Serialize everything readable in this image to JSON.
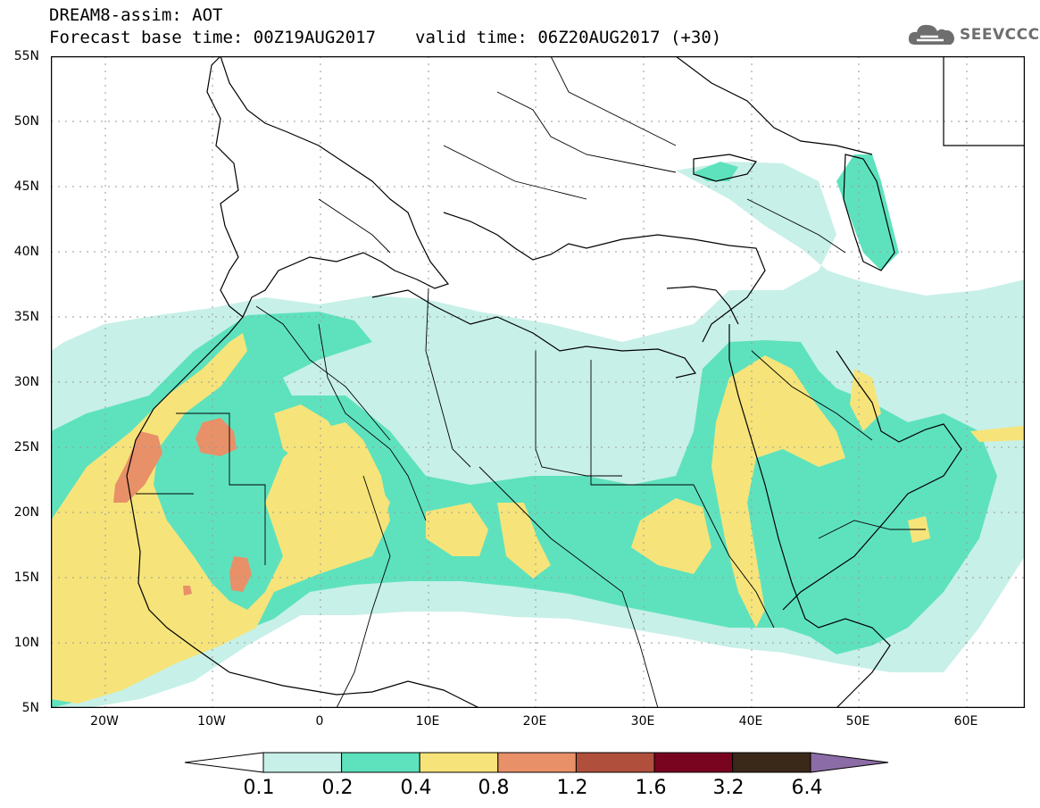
{
  "header": {
    "model_line": "DREAM8-assim: AOT",
    "base_time": "Forecast base time: 00Z19AUG2017",
    "valid_time": "valid time: 06Z20AUG2017 (+30)"
  },
  "logo": {
    "text": "SEEVCCC",
    "icon": "cloud-icon"
  },
  "map": {
    "lon_range": [
      -25,
      65
    ],
    "lat_range": [
      5,
      55
    ],
    "lat_ticks": [
      "55N",
      "50N",
      "45N",
      "40N",
      "35N",
      "30N",
      "25N",
      "20N",
      "15N",
      "10N",
      "5N"
    ],
    "lon_ticks": [
      "20W",
      "10W",
      "0",
      "10E",
      "20E",
      "30E",
      "40E",
      "50E",
      "60E"
    ],
    "grid": "dotted",
    "land_fill": "#ffffff",
    "border_color": "#000000"
  },
  "colorbar": {
    "labels": [
      "0.1",
      "0.2",
      "0.4",
      "0.8",
      "1.2",
      "1.6",
      "3.2",
      "6.4"
    ],
    "colors": [
      "#c7f0e8",
      "#5ee2be",
      "#f6e47a",
      "#e89068",
      "#b0503c",
      "#780420",
      "#3a2818"
    ],
    "over_color": "#8c6ca6",
    "under_color": "#ffffff"
  }
}
